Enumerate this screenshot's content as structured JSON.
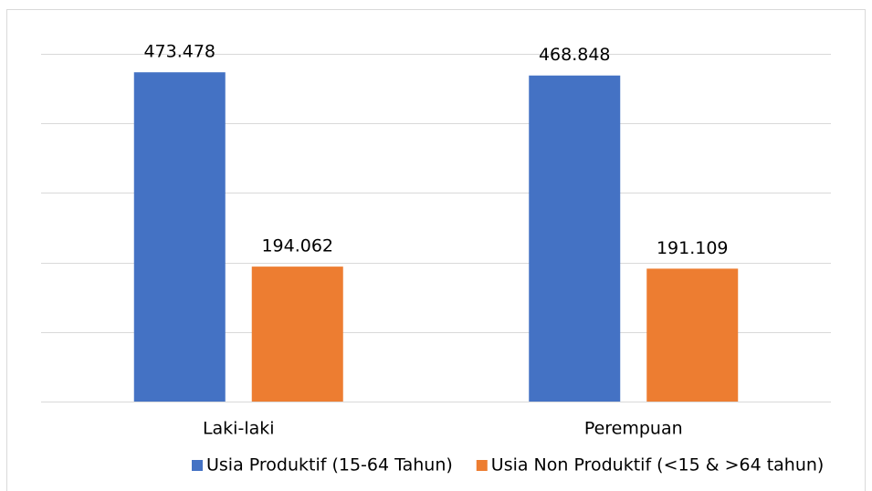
{
  "chart_data": {
    "type": "bar",
    "categories": [
      "Laki-laki",
      "Perempuan"
    ],
    "series": [
      {
        "name": "Usia Produktif (15-64 Tahun)",
        "color": "#4472c4",
        "values": [
          473478,
          468848
        ],
        "value_labels": [
          "473.478",
          "468.848"
        ]
      },
      {
        "name": "Usia Non Produktif (<15 & >64 tahun)",
        "color": "#ed7d31",
        "values": [
          194062,
          191109
        ],
        "value_labels": [
          "194.062",
          "191.109"
        ]
      }
    ],
    "ylim": [
      0,
      500000
    ],
    "yticks": [
      0,
      100000,
      200000,
      300000,
      400000,
      500000
    ],
    "grid": true,
    "legend": "bottom"
  }
}
